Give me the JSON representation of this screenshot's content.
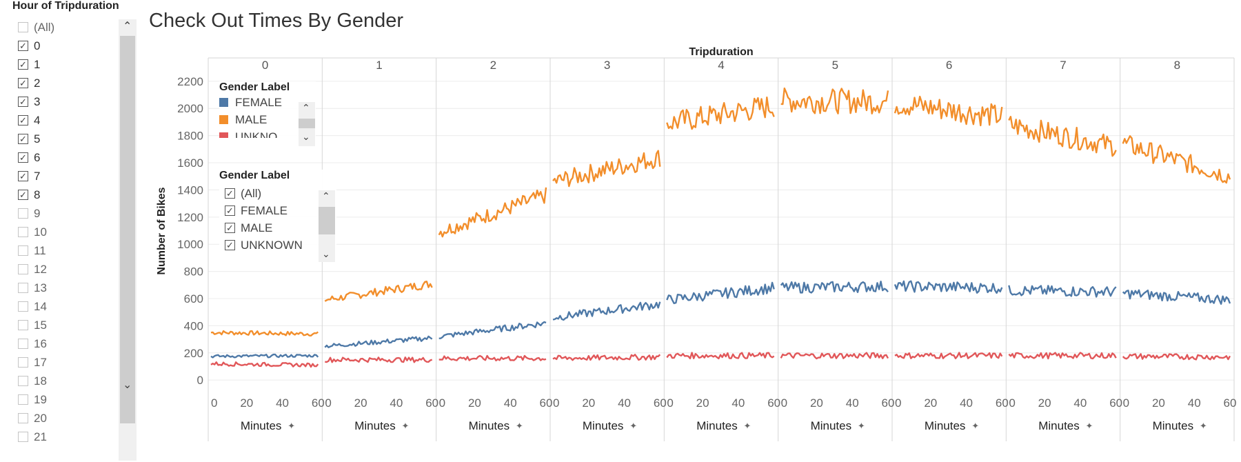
{
  "filter": {
    "title": "Hour of Tripduration",
    "items": [
      {
        "label": "(All)",
        "checked": false
      },
      {
        "label": "0",
        "checked": true
      },
      {
        "label": "1",
        "checked": true
      },
      {
        "label": "2",
        "checked": true
      },
      {
        "label": "3",
        "checked": true
      },
      {
        "label": "4",
        "checked": true
      },
      {
        "label": "5",
        "checked": true
      },
      {
        "label": "6",
        "checked": true
      },
      {
        "label": "7",
        "checked": true
      },
      {
        "label": "8",
        "checked": true
      },
      {
        "label": "9",
        "checked": false
      },
      {
        "label": "10",
        "checked": false
      },
      {
        "label": "11",
        "checked": false
      },
      {
        "label": "12",
        "checked": false
      },
      {
        "label": "13",
        "checked": false
      },
      {
        "label": "14",
        "checked": false
      },
      {
        "label": "15",
        "checked": false
      },
      {
        "label": "16",
        "checked": false
      },
      {
        "label": "17",
        "checked": false
      },
      {
        "label": "18",
        "checked": false
      },
      {
        "label": "19",
        "checked": false
      },
      {
        "label": "20",
        "checked": false
      },
      {
        "label": "21",
        "checked": false
      }
    ]
  },
  "color_legend": {
    "title": "Gender Label",
    "items": [
      {
        "label": "FEMALE",
        "color": "#4e79a7"
      },
      {
        "label": "MALE",
        "color": "#f28e2b"
      },
      {
        "label": "UNKNO",
        "color": "#e15759"
      }
    ]
  },
  "gender_filter": {
    "title": "Gender Label",
    "items": [
      {
        "label": "(All)",
        "checked": true
      },
      {
        "label": "FEMALE",
        "checked": true
      },
      {
        "label": "MALE",
        "checked": true
      },
      {
        "label": "UNKNOWN",
        "checked": true
      }
    ]
  },
  "chart_data": {
    "type": "line",
    "title": "Check Out Times By Gender",
    "column_header": "Tripduration",
    "panels": [
      "0",
      "1",
      "2",
      "3",
      "4",
      "5",
      "6",
      "7",
      "8"
    ],
    "xlabel": "Minutes",
    "ylabel": "Number of Bikes",
    "x_ticks": [
      0,
      20,
      40,
      60
    ],
    "y_ticks": [
      0,
      200,
      400,
      600,
      800,
      1000,
      1200,
      1400,
      1600,
      1800,
      2000,
      2200
    ],
    "ylim": [
      -60,
      2250
    ],
    "xlim": [
      0,
      60
    ],
    "grid": true,
    "series": [
      {
        "name": "MALE",
        "color": "#f28e2b",
        "values": [
          [
            350,
            340
          ],
          [
            590,
            710
          ],
          [
            1090,
            1360
          ],
          [
            1460,
            1640
          ],
          [
            1890,
            2020
          ],
          [
            2060,
            2050
          ],
          [
            2040,
            1940
          ],
          [
            1880,
            1720
          ],
          [
            1740,
            1500
          ]
        ]
      },
      {
        "name": "FEMALE",
        "color": "#4e79a7",
        "values": [
          [
            175,
            180
          ],
          [
            250,
            310
          ],
          [
            320,
            420
          ],
          [
            460,
            560
          ],
          [
            590,
            680
          ],
          [
            680,
            690
          ],
          [
            690,
            680
          ],
          [
            660,
            650
          ],
          [
            640,
            590
          ]
        ]
      },
      {
        "name": "UNKNOWN",
        "color": "#e15759",
        "values": [
          [
            120,
            110
          ],
          [
            150,
            150
          ],
          [
            160,
            160
          ],
          [
            160,
            170
          ],
          [
            180,
            180
          ],
          [
            180,
            180
          ],
          [
            180,
            180
          ],
          [
            180,
            180
          ],
          [
            175,
            170
          ]
        ]
      }
    ]
  }
}
